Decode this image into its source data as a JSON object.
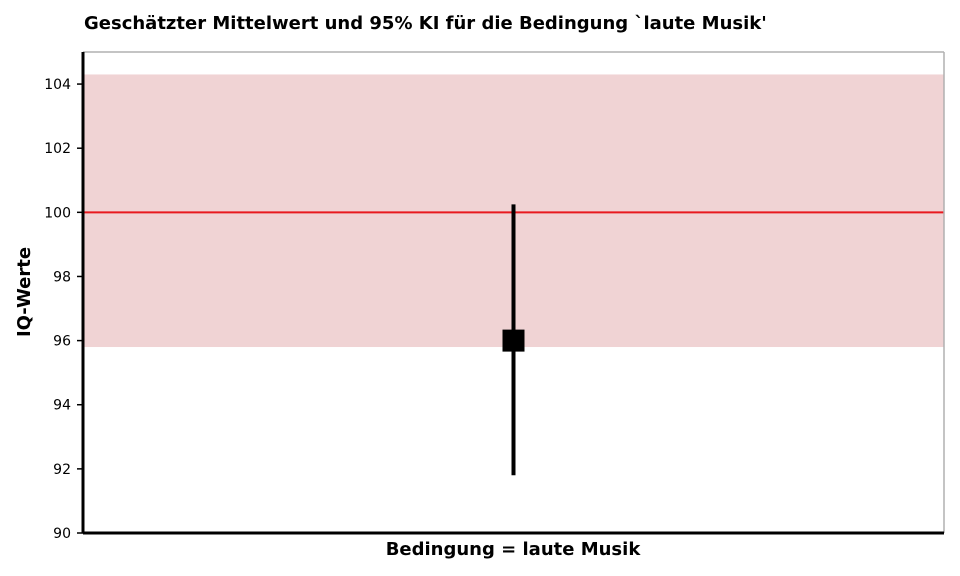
{
  "chart_data": {
    "type": "scatter",
    "title": "Geschätzter Mittelwert und 95% KI für die Bedingung `laute Musik'",
    "xlabel": "Bedingung = laute Musik",
    "ylabel": "IQ-Werte",
    "ylim": [
      90,
      105
    ],
    "yticks": [
      90,
      92,
      94,
      96,
      98,
      100,
      102,
      104
    ],
    "grid": false,
    "reference_line": {
      "value": 100,
      "color": "#e8191f"
    },
    "reference_band": {
      "low": 95.8,
      "high": 104.3,
      "color": "#f0d3d4"
    },
    "points": [
      {
        "category": "laute Musik",
        "mean": 96.0,
        "ci_low": 91.8,
        "ci_high": 100.25
      }
    ]
  }
}
